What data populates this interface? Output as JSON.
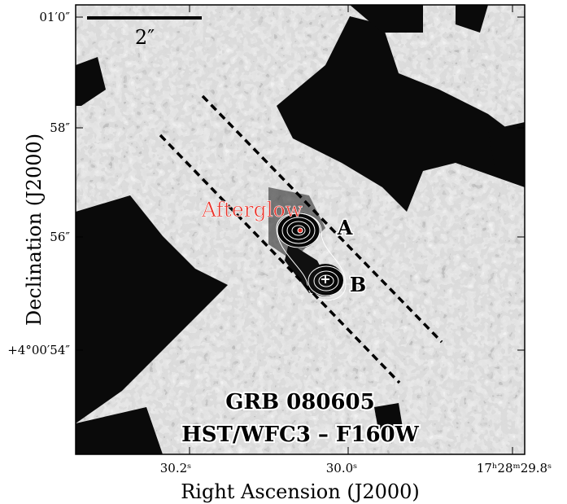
{
  "figure": {
    "object": "GRB 080605",
    "instrument": "HST/WFC3 – F160W",
    "scale_bar_label": "2″",
    "afterglow_label": "Afterglow",
    "label_a": "A",
    "label_b": "B",
    "colors": {
      "afterglow_text": "#e8332a",
      "contours": "#ffffff",
      "slit": "#000000"
    }
  },
  "axes": {
    "xlabel": "Right Ascension (J2000)",
    "ylabel": "Declination (J2000)",
    "xticks": [
      "30.2ˢ",
      "30.0ˢ",
      "17ʰ28ᵐ29.8ˢ"
    ],
    "yticks": [
      "01′0″",
      "58″",
      "56″",
      "+4°00′54″"
    ]
  }
}
